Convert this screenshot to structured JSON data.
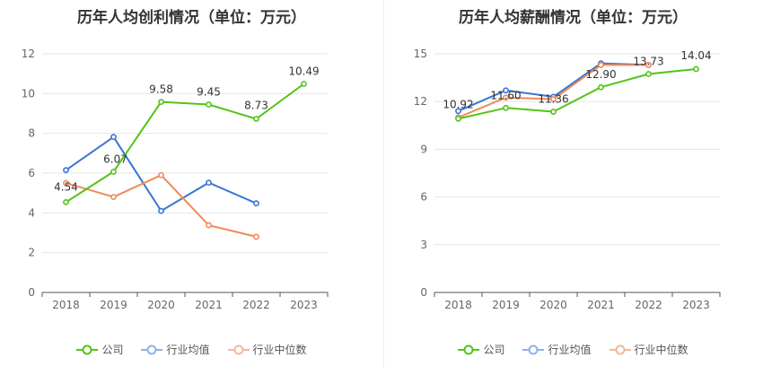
{
  "chart_data": [
    {
      "type": "line",
      "title": "历年人均创利情况（单位：万元）",
      "categories": [
        "2018",
        "2019",
        "2020",
        "2021",
        "2022",
        "2023"
      ],
      "ylim": [
        0,
        12
      ],
      "yticks": [
        0,
        2,
        4,
        6,
        8,
        10,
        12
      ],
      "grid": true,
      "legend_position": "bottom",
      "series": [
        {
          "name": "公司",
          "values": [
            4.54,
            6.07,
            9.58,
            9.45,
            8.73,
            10.49
          ],
          "color": "#52c41a",
          "labels": [
            "4.54",
            "6.07",
            "9.58",
            "9.45",
            "8.73",
            "10.49"
          ]
        },
        {
          "name": "行业均值",
          "values": [
            6.15,
            7.82,
            4.1,
            5.52,
            4.48,
            null
          ],
          "color": "#3a75d8",
          "labels": []
        },
        {
          "name": "行业中位数",
          "values": [
            5.5,
            4.8,
            5.9,
            3.38,
            2.8,
            null
          ],
          "color": "#ee8a5a",
          "labels": []
        }
      ]
    },
    {
      "type": "line",
      "title": "历年人均薪酬情况（单位：万元）",
      "categories": [
        "2018",
        "2019",
        "2020",
        "2021",
        "2022",
        "2023"
      ],
      "ylim": [
        0,
        15
      ],
      "yticks": [
        0,
        3,
        6,
        9,
        12,
        15
      ],
      "grid": true,
      "legend_position": "bottom",
      "series": [
        {
          "name": "公司",
          "values": [
            10.92,
            11.6,
            11.36,
            12.9,
            13.73,
            14.04
          ],
          "color": "#52c41a",
          "labels": [
            "10.92",
            "11.60",
            "11.36",
            "12.90",
            "13.73",
            "14.04"
          ]
        },
        {
          "name": "行业均值",
          "values": [
            11.4,
            12.7,
            12.3,
            14.4,
            14.3,
            null
          ],
          "color": "#3a75d8",
          "labels": []
        },
        {
          "name": "行业中位数",
          "values": [
            11.0,
            12.25,
            12.15,
            14.3,
            14.3,
            null
          ],
          "color": "#ee8a5a",
          "labels": []
        }
      ]
    }
  ],
  "legend": {
    "items": [
      {
        "label": "公司",
        "color": "#52c41a"
      },
      {
        "label": "行业均值",
        "color": "#8fb0ea"
      },
      {
        "label": "行业中位数",
        "color": "#f5b69b"
      }
    ]
  }
}
